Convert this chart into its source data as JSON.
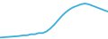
{
  "x": [
    0,
    1,
    2,
    3,
    4,
    5,
    6,
    7,
    8,
    9,
    10,
    11,
    12,
    13,
    14,
    15,
    16,
    17,
    18,
    19,
    20,
    21,
    22,
    23,
    24,
    25,
    26,
    27,
    28
  ],
  "y": [
    1,
    1.2,
    1.4,
    1.6,
    1.8,
    2.0,
    2.5,
    2.5,
    3.2,
    3.2,
    4.0,
    4.0,
    5.0,
    7.0,
    9.5,
    12.5,
    15.5,
    18.0,
    20.0,
    21.5,
    22.5,
    23.5,
    24.0,
    23.5,
    22.5,
    21.5,
    20.5,
    19.5,
    18.5
  ],
  "line_color": "#3aaedc",
  "linewidth": 1.3,
  "background_color": "#ffffff",
  "ylim": [
    0,
    27
  ],
  "xlim": [
    0,
    28
  ]
}
